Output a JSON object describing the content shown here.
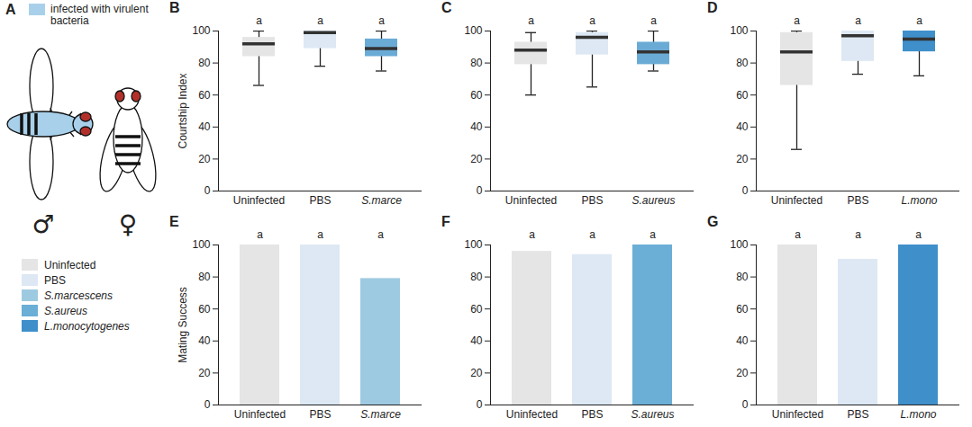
{
  "panel_a": {
    "panel": "A",
    "key_label": "infected with virulent bacteria",
    "key_color": "#a8d0ea",
    "sexes": [
      "♂",
      "♀"
    ]
  },
  "legend": [
    {
      "name": "Uninfected",
      "color": "#e5e5e5"
    },
    {
      "name": "PBS",
      "color": "#dde8f4"
    },
    {
      "name": "S.marcescens",
      "color": "#9ecae1"
    },
    {
      "name": "S.aureus",
      "color": "#6baed6"
    },
    {
      "name": "L.monocytogenes",
      "color": "#3f8fca"
    }
  ],
  "chart_data": [
    {
      "panel": "B",
      "type": "box",
      "ylabel": "Courtship Index",
      "categories": [
        "Uninfected",
        "PBS",
        "S.marce"
      ],
      "whisker_low": [
        66,
        78,
        75
      ],
      "q1": [
        84,
        89,
        84
      ],
      "median": [
        92,
        99,
        89
      ],
      "q3": [
        96,
        100,
        95
      ],
      "whisker_high": [
        100,
        100,
        100
      ],
      "colors": [
        "#e5e5e5",
        "#dde8f4",
        "#6aabd6"
      ],
      "annotations": [
        "a",
        "a",
        "a"
      ],
      "ylim": [
        0,
        100
      ],
      "yticks": [
        0,
        20,
        40,
        60,
        80,
        100
      ]
    },
    {
      "panel": "C",
      "type": "box",
      "categories": [
        "Uninfected",
        "PBS",
        "S.aureus"
      ],
      "whisker_low": [
        60,
        65,
        75
      ],
      "q1": [
        79,
        85,
        79
      ],
      "median": [
        88,
        96,
        87
      ],
      "q3": [
        93,
        99,
        93
      ],
      "whisker_high": [
        99,
        100,
        100
      ],
      "colors": [
        "#e5e5e5",
        "#dde8f4",
        "#6aabd6"
      ],
      "annotations": [
        "a",
        "a",
        "a"
      ],
      "ylim": [
        0,
        100
      ],
      "yticks": [
        0,
        20,
        40,
        60,
        80,
        100
      ]
    },
    {
      "panel": "D",
      "type": "box",
      "categories": [
        "Uninfected",
        "PBS",
        "L.mono"
      ],
      "whisker_low": [
        26,
        73,
        72
      ],
      "q1": [
        66,
        81,
        87
      ],
      "median": [
        87,
        97,
        95
      ],
      "q3": [
        99,
        100,
        100
      ],
      "whisker_high": [
        100,
        100,
        100
      ],
      "colors": [
        "#e5e5e5",
        "#dde8f4",
        "#3f8fca"
      ],
      "annotations": [
        "a",
        "a",
        "a"
      ],
      "ylim": [
        0,
        100
      ],
      "yticks": [
        0,
        20,
        40,
        60,
        80,
        100
      ]
    },
    {
      "panel": "E",
      "type": "bar",
      "ylabel": "Mating Success",
      "categories": [
        "Uninfected",
        "PBS",
        "S.marce"
      ],
      "values": [
        100,
        100,
        79
      ],
      "colors": [
        "#e5e5e5",
        "#dde8f4",
        "#9ecae1"
      ],
      "annotations": [
        "a",
        "a",
        "a"
      ],
      "ylim": [
        0,
        100
      ],
      "yticks": [
        0,
        20,
        40,
        60,
        80,
        100
      ]
    },
    {
      "panel": "F",
      "type": "bar",
      "categories": [
        "Uninfected",
        "PBS",
        "S.aureus"
      ],
      "values": [
        96,
        94,
        100
      ],
      "colors": [
        "#e5e5e5",
        "#dde8f4",
        "#6baed6"
      ],
      "annotations": [
        "a",
        "a",
        "a"
      ],
      "ylim": [
        0,
        100
      ],
      "yticks": [
        0,
        20,
        40,
        60,
        80,
        100
      ]
    },
    {
      "panel": "G",
      "type": "bar",
      "categories": [
        "Uninfected",
        "PBS",
        "L.mono"
      ],
      "values": [
        100,
        91,
        100
      ],
      "colors": [
        "#e5e5e5",
        "#dde8f4",
        "#3f8fca"
      ],
      "annotations": [
        "a",
        "a",
        "a"
      ],
      "ylim": [
        0,
        100
      ],
      "yticks": [
        0,
        20,
        40,
        60,
        80,
        100
      ]
    }
  ]
}
